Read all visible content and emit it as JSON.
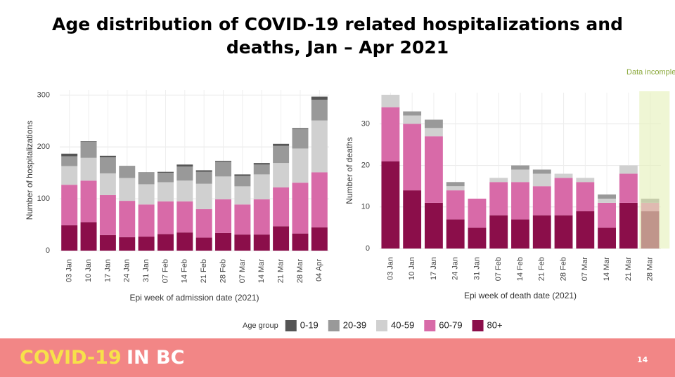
{
  "title": "Age distribution of COVID-19 related hospitalizations and deaths, Jan – Apr 2021",
  "legend": {
    "title": "Age group"
  },
  "footer": {
    "brand": "COVID-19",
    "region": "IN BC",
    "page": "14"
  },
  "chart_data": [
    {
      "type": "stacked_bar",
      "x_label": "Epi week of admission date (2021)",
      "y_label": "Number of hospitalizations",
      "categories": [
        "03 Jan",
        "10 Jan",
        "17 Jan",
        "24 Jan",
        "31 Jan",
        "07 Feb",
        "14 Feb",
        "21 Feb",
        "28 Feb",
        "07 Mar",
        "14 Mar",
        "21 Mar",
        "28 Mar",
        "04 Apr"
      ],
      "series": [
        {
          "name": "0-19",
          "color": "#555555",
          "values": [
            5,
            1,
            3,
            1,
            1,
            2,
            4,
            3,
            2,
            3,
            3,
            4,
            2,
            6
          ]
        },
        {
          "name": "20-39",
          "color": "#999999",
          "values": [
            19,
            31,
            31,
            22,
            22,
            18,
            27,
            23,
            28,
            20,
            19,
            33,
            37,
            40
          ]
        },
        {
          "name": "40-59",
          "color": "#d0d0d0",
          "values": [
            36,
            44,
            42,
            44,
            39,
            37,
            40,
            49,
            44,
            35,
            48,
            47,
            66,
            100
          ]
        },
        {
          "name": "60-79",
          "color": "#d86aa8",
          "values": [
            78,
            80,
            77,
            70,
            62,
            63,
            60,
            55,
            65,
            58,
            68,
            75,
            98,
            106
          ]
        },
        {
          "name": "80+",
          "color": "#8b0e4a",
          "values": [
            49,
            55,
            30,
            26,
            27,
            32,
            35,
            25,
            34,
            31,
            31,
            47,
            33,
            45
          ]
        }
      ],
      "ylim": [
        0,
        310
      ],
      "yticks": [
        0,
        100,
        200,
        300
      ],
      "grid": true
    },
    {
      "type": "stacked_bar",
      "x_label": "Epi week of death date (2021)",
      "y_label": "Number of deaths",
      "categories": [
        "03 Jan",
        "10 Jan",
        "17 Jan",
        "24 Jan",
        "31 Jan",
        "07 Feb",
        "14 Feb",
        "21 Feb",
        "28 Feb",
        "07 Mar",
        "14 Mar",
        "21 Mar",
        "28 Mar"
      ],
      "series": [
        {
          "name": "0-19",
          "color": "#555555",
          "values": [
            0,
            0,
            0,
            0,
            0,
            0,
            0,
            0,
            0,
            0,
            0,
            0,
            0
          ]
        },
        {
          "name": "20-39",
          "color": "#999999",
          "values": [
            0,
            1,
            2,
            1,
            0,
            0,
            1,
            1,
            0,
            0,
            1,
            0,
            1
          ]
        },
        {
          "name": "40-59",
          "color": "#d0d0d0",
          "values": [
            3,
            2,
            2,
            1,
            0,
            1,
            3,
            3,
            1,
            1,
            1,
            2,
            0
          ]
        },
        {
          "name": "60-79",
          "color": "#d86aa8",
          "values": [
            13,
            16,
            16,
            7,
            7,
            8,
            9,
            7,
            9,
            7,
            6,
            7,
            2
          ]
        },
        {
          "name": "80+",
          "color": "#8b0e4a",
          "values": [
            21,
            14,
            11,
            7,
            5,
            8,
            7,
            8,
            8,
            9,
            5,
            11,
            9
          ]
        }
      ],
      "ylim": [
        0,
        37.5
      ],
      "yticks": [
        0,
        10,
        20,
        30
      ],
      "grid": true,
      "annotation": {
        "text": "Data incomplete",
        "category": "28 Mar",
        "color": "#e4f0b8",
        "text_color": "#8aa83a"
      }
    }
  ]
}
